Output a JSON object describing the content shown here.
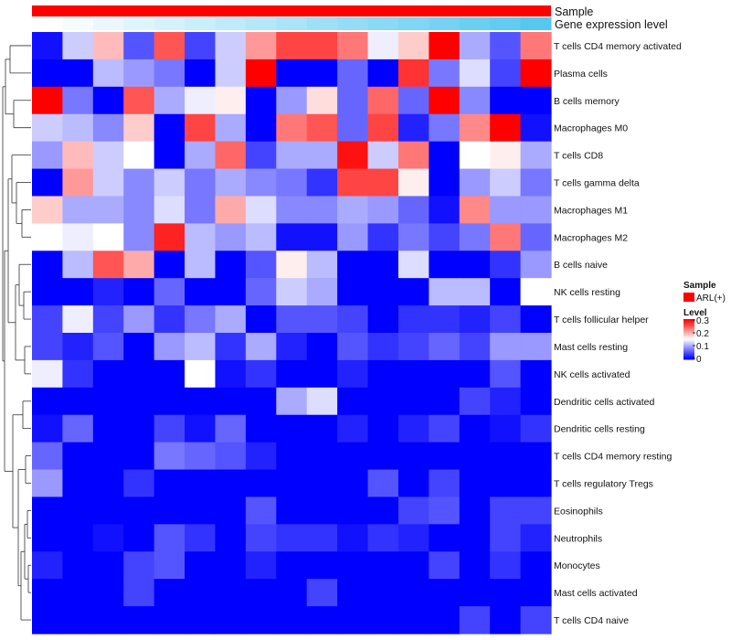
{
  "chart_data": {
    "type": "heatmap",
    "annotations": [
      {
        "label": "Sample",
        "color": "#ff0000"
      },
      {
        "label": "Gene expression level",
        "gradient": [
          "#ffffff",
          "#56c8f0"
        ]
      }
    ],
    "rows": [
      "T cells CD4 memory activated",
      "Plasma cells",
      "B cells memory",
      "Macrophages M0",
      "T cells CD8",
      "T cells gamma delta",
      "Macrophages M1",
      "Macrophages M2",
      "B cells naive",
      "NK cells resting",
      "T cells follicular helper",
      "Mast cells resting",
      "NK cells activated",
      "Dendritic cells activated",
      "Dendritic cells resting",
      "T cells CD4 memory resting",
      "T cells regulatory  Tregs",
      "Eosinophils",
      "Neutrophils",
      "Monocytes",
      "Mast cells activated",
      "T cells CD4 naive"
    ],
    "values": [
      [
        0.01,
        0.12,
        0.19,
        0.05,
        0.25,
        0.04,
        0.12,
        0.21,
        0.26,
        0.26,
        0.23,
        0.14,
        0.18,
        0.3,
        0.1,
        0.05,
        0.23
      ],
      [
        0.0,
        0.0,
        0.11,
        0.09,
        0.07,
        0.0,
        0.12,
        0.3,
        0.0,
        0.0,
        0.06,
        0.0,
        0.27,
        0.07,
        0.13,
        0.04,
        0.3
      ],
      [
        0.3,
        0.07,
        0.0,
        0.25,
        0.1,
        0.14,
        0.16,
        0.0,
        0.09,
        0.17,
        0.06,
        0.24,
        0.06,
        0.3,
        0.08,
        0.0,
        0.0
      ],
      [
        0.12,
        0.11,
        0.08,
        0.18,
        0.0,
        0.26,
        0.1,
        0.0,
        0.23,
        0.25,
        0.06,
        0.26,
        0.02,
        0.07,
        0.22,
        0.3,
        0.01
      ],
      [
        0.09,
        0.19,
        0.12,
        0.15,
        0.0,
        0.1,
        0.24,
        0.04,
        0.1,
        0.1,
        0.29,
        0.12,
        0.23,
        0.0,
        0.15,
        0.16,
        0.1
      ],
      [
        0.0,
        0.21,
        0.12,
        0.08,
        0.12,
        0.07,
        0.1,
        0.08,
        0.07,
        0.03,
        0.26,
        0.26,
        0.16,
        0.0,
        0.09,
        0.12,
        0.07
      ],
      [
        0.18,
        0.1,
        0.1,
        0.08,
        0.13,
        0.07,
        0.2,
        0.13,
        0.08,
        0.08,
        0.1,
        0.09,
        0.06,
        0.01,
        0.22,
        0.09,
        0.09
      ],
      [
        0.15,
        0.14,
        0.15,
        0.08,
        0.28,
        0.11,
        0.09,
        0.11,
        0.01,
        0.01,
        0.09,
        0.03,
        0.07,
        0.04,
        0.07,
        0.23,
        0.06
      ],
      [
        0.0,
        0.11,
        0.25,
        0.2,
        0.0,
        0.11,
        0.0,
        0.05,
        0.16,
        0.11,
        0.0,
        0.0,
        0.13,
        0.0,
        0.0,
        0.03,
        0.09
      ],
      [
        0.0,
        0.0,
        0.02,
        0.0,
        0.06,
        0.0,
        0.0,
        0.06,
        0.12,
        0.1,
        0.0,
        0.0,
        0.0,
        0.11,
        0.11,
        0.0,
        0.15
      ],
      [
        0.04,
        0.14,
        0.04,
        0.09,
        0.03,
        0.07,
        0.1,
        0.0,
        0.05,
        0.05,
        0.04,
        0.0,
        0.03,
        0.03,
        0.02,
        0.04,
        0.0
      ],
      [
        0.04,
        0.02,
        0.05,
        0.0,
        0.09,
        0.11,
        0.03,
        0.1,
        0.02,
        0.0,
        0.05,
        0.03,
        0.04,
        0.06,
        0.04,
        0.09,
        0.09
      ],
      [
        0.14,
        0.03,
        0.0,
        0.0,
        0.0,
        0.15,
        0.01,
        0.03,
        0.0,
        0.0,
        0.02,
        0.0,
        0.0,
        0.0,
        0.0,
        0.05,
        0.0
      ],
      [
        0.0,
        0.0,
        0.0,
        0.0,
        0.0,
        0.0,
        0.0,
        0.0,
        0.1,
        0.13,
        0.0,
        0.0,
        0.0,
        0.0,
        0.04,
        0.02,
        0.0
      ],
      [
        0.01,
        0.06,
        0.0,
        0.0,
        0.04,
        0.01,
        0.06,
        0.0,
        0.0,
        0.0,
        0.02,
        0.0,
        0.02,
        0.04,
        0.0,
        0.01,
        0.03
      ],
      [
        0.06,
        0.0,
        0.0,
        0.0,
        0.07,
        0.06,
        0.05,
        0.02,
        0.0,
        0.0,
        0.0,
        0.0,
        0.0,
        0.0,
        0.0,
        0.0,
        0.0
      ],
      [
        0.09,
        0.0,
        0.0,
        0.03,
        0.0,
        0.0,
        0.0,
        0.0,
        0.0,
        0.0,
        0.0,
        0.05,
        0.0,
        0.04,
        0.0,
        0.0,
        0.0
      ],
      [
        0.0,
        0.0,
        0.0,
        0.0,
        0.0,
        0.0,
        0.0,
        0.05,
        0.0,
        0.0,
        0.0,
        0.0,
        0.04,
        0.05,
        0.0,
        0.04,
        0.04
      ],
      [
        0.0,
        0.0,
        0.01,
        0.0,
        0.05,
        0.03,
        0.0,
        0.04,
        0.03,
        0.03,
        0.01,
        0.03,
        0.02,
        0.0,
        0.0,
        0.04,
        0.02
      ],
      [
        0.02,
        0.0,
        0.0,
        0.04,
        0.05,
        0.0,
        0.0,
        0.02,
        0.0,
        0.0,
        0.0,
        0.0,
        0.0,
        0.04,
        0.0,
        0.03,
        0.0
      ],
      [
        0.0,
        0.0,
        0.0,
        0.04,
        0.0,
        0.0,
        0.0,
        0.0,
        0.0,
        0.04,
        0.0,
        0.0,
        0.0,
        0.0,
        0.0,
        0.0,
        0.0
      ],
      [
        0.0,
        0.0,
        0.0,
        0.0,
        0.0,
        0.0,
        0.0,
        0.0,
        0.0,
        0.0,
        0.0,
        0.0,
        0.0,
        0.0,
        0.04,
        0.0,
        0.04
      ]
    ],
    "color_scale": {
      "min": 0,
      "max": 0.3,
      "low": "#0000ff",
      "mid": "#ffffff",
      "high": "#ff0000",
      "midpoint": 0.15
    },
    "dendrogram": "rows",
    "legend": {
      "position": "right",
      "sample_title": "Sample",
      "sample_label": "ARL(+)",
      "level_title": "Level",
      "level_ticks": [
        "0.3",
        "0.2",
        "0.1",
        "0"
      ]
    }
  }
}
